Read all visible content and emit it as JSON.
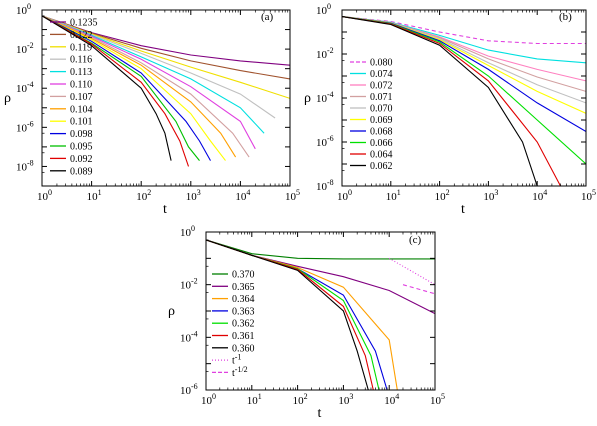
{
  "figure": {
    "panels": [
      {
        "id": "a",
        "label": "(a)",
        "xlabel": "t",
        "ylabel": "ρ",
        "xtick_exps": [
          "0",
          "1",
          "2",
          "3",
          "4",
          "5"
        ],
        "ytick_exps": [
          "0",
          "-2",
          "-4",
          "-6",
          "-8"
        ],
        "legend": [
          {
            "label": "0.1235",
            "color": "#800080"
          },
          {
            "label": "0.122",
            "color": "#a0522d"
          },
          {
            "label": "0.119",
            "color": "#f0e000"
          },
          {
            "label": "0.116",
            "color": "#c0c0c0"
          },
          {
            "label": "0.113",
            "color": "#00e0e0"
          },
          {
            "label": "0.110",
            "color": "#e040e0"
          },
          {
            "label": "0.107",
            "color": "#d2a0a0"
          },
          {
            "label": "0.104",
            "color": "#ffa000"
          },
          {
            "label": "0.101",
            "color": "#ffff00"
          },
          {
            "label": "0.098",
            "color": "#0000e0"
          },
          {
            "label": "0.095",
            "color": "#00c000"
          },
          {
            "label": "0.092",
            "color": "#e00000"
          },
          {
            "label": "0.089",
            "color": "#000000"
          }
        ]
      },
      {
        "id": "b",
        "label": "(b)",
        "xlabel": "t",
        "ylabel": "ρ",
        "xtick_exps": [
          "0",
          "1",
          "2",
          "3",
          "4",
          "5"
        ],
        "ytick_exps": [
          "0",
          "-2",
          "-4",
          "-6",
          "-8"
        ],
        "legend": [
          {
            "label": "0.080",
            "color": "#e040e0",
            "dash": true
          },
          {
            "label": "0.074",
            "color": "#00e0e0"
          },
          {
            "label": "0.072",
            "color": "#ff80c0"
          },
          {
            "label": "0.071",
            "color": "#d2a0a0"
          },
          {
            "label": "0.070",
            "color": "#c0c0c0"
          },
          {
            "label": "0.069",
            "color": "#ffff00"
          },
          {
            "label": "0.068",
            "color": "#0000e0"
          },
          {
            "label": "0.066",
            "color": "#00e000"
          },
          {
            "label": "0.064",
            "color": "#e00000"
          },
          {
            "label": "0.062",
            "color": "#000000"
          }
        ]
      },
      {
        "id": "c",
        "label": "(c)",
        "xlabel": "t",
        "ylabel": "ρ",
        "xtick_exps": [
          "0",
          "1",
          "2",
          "3",
          "4",
          "5"
        ],
        "ytick_exps": [
          "0",
          "-2",
          "-4",
          "-6"
        ],
        "legend": [
          {
            "label": "0.370",
            "color": "#008000"
          },
          {
            "label": "0.365",
            "color": "#800080"
          },
          {
            "label": "0.364",
            "color": "#ffa000"
          },
          {
            "label": "0.363",
            "color": "#0000e0"
          },
          {
            "label": "0.362",
            "color": "#00e000"
          },
          {
            "label": "0.361",
            "color": "#e00000"
          },
          {
            "label": "0.360",
            "color": "#000000"
          },
          {
            "label": "t",
            "sup": "-1",
            "color": "#e040e0",
            "dotted": true
          },
          {
            "label": "t",
            "sup": "-1/2",
            "color": "#e040e0",
            "dash": true
          }
        ]
      }
    ]
  },
  "chart_data": [
    {
      "type": "line",
      "panel": "(a)",
      "xlabel": "t",
      "ylabel": "ρ",
      "xscale": "log",
      "yscale": "log",
      "xlim": [
        1,
        100000
      ],
      "ylim": [
        1e-09,
        1
      ],
      "series": [
        {
          "name": "0.1235",
          "color": "#800080",
          "x": [
            1,
            10,
            100,
            1000,
            10000,
            100000
          ],
          "y": [
            0.5,
            0.07,
            0.015,
            0.005,
            0.0025,
            0.0015
          ]
        },
        {
          "name": "0.122",
          "color": "#a0522d",
          "x": [
            1,
            10,
            100,
            1000,
            10000,
            100000
          ],
          "y": [
            0.5,
            0.065,
            0.011,
            0.0025,
            0.0008,
            0.0003
          ]
        },
        {
          "name": "0.119",
          "color": "#f0e000",
          "x": [
            1,
            10,
            100,
            1000,
            10000,
            100000
          ],
          "y": [
            0.5,
            0.06,
            0.008,
            0.0012,
            0.0002,
            3e-05
          ]
        },
        {
          "name": "0.116",
          "color": "#c0c0c0",
          "x": [
            1,
            10,
            100,
            1000,
            10000,
            50000
          ],
          "y": [
            0.5,
            0.055,
            0.006,
            0.0006,
            5e-05,
            3e-06
          ]
        },
        {
          "name": "0.113",
          "color": "#00e0e0",
          "x": [
            1,
            10,
            100,
            1000,
            10000,
            30000
          ],
          "y": [
            0.5,
            0.05,
            0.004,
            0.0003,
            1e-05,
            5e-07
          ]
        },
        {
          "name": "0.110",
          "color": "#e040e0",
          "x": [
            1,
            10,
            100,
            1000,
            10000,
            20000
          ],
          "y": [
            0.5,
            0.045,
            0.003,
            0.00012,
            2e-06,
            8e-08
          ]
        },
        {
          "name": "0.107",
          "color": "#d2a0a0",
          "x": [
            1,
            10,
            100,
            1000,
            7000,
            15000
          ],
          "y": [
            0.5,
            0.04,
            0.002,
            5e-05,
            5e-07,
            3e-08
          ]
        },
        {
          "name": "0.104",
          "color": "#ffa000",
          "x": [
            1,
            10,
            100,
            1000,
            4000,
            8000
          ],
          "y": [
            0.5,
            0.035,
            0.0015,
            2e-05,
            5e-07,
            3e-08
          ]
        },
        {
          "name": "0.101",
          "color": "#ffff00",
          "x": [
            1,
            10,
            100,
            1000,
            2500,
            5000
          ],
          "y": [
            0.5,
            0.03,
            0.001,
            5e-06,
            2e-07,
            2e-08
          ]
        },
        {
          "name": "0.098",
          "color": "#0000e0",
          "x": [
            1,
            10,
            100,
            800,
            1500,
            2500
          ],
          "y": [
            0.5,
            0.025,
            0.0006,
            2e-06,
            2e-07,
            2e-08
          ]
        },
        {
          "name": "0.095",
          "color": "#00c000",
          "x": [
            1,
            10,
            100,
            500,
            900,
            1500
          ],
          "y": [
            0.5,
            0.02,
            0.0004,
            2e-06,
            1e-07,
            2e-08
          ]
        },
        {
          "name": "0.092",
          "color": "#e00000",
          "x": [
            1,
            10,
            100,
            300,
            600,
            900
          ],
          "y": [
            0.5,
            0.018,
            0.0002,
            5e-06,
            2e-07,
            1e-08
          ]
        },
        {
          "name": "0.089",
          "color": "#000000",
          "x": [
            1,
            10,
            100,
            200,
            300,
            400
          ],
          "y": [
            0.5,
            0.015,
            0.0001,
            5e-06,
            5e-07,
            2e-08
          ]
        }
      ]
    },
    {
      "type": "line",
      "panel": "(b)",
      "xlabel": "t",
      "ylabel": "ρ",
      "xscale": "log",
      "yscale": "log",
      "xlim": [
        1,
        100000
      ],
      "ylim": [
        1e-08,
        1
      ],
      "series": [
        {
          "name": "0.080",
          "color": "#e040e0",
          "x": [
            1,
            10,
            100,
            1000,
            10000,
            100000
          ],
          "y": [
            0.5,
            0.3,
            0.1,
            0.04,
            0.03,
            0.03
          ]
        },
        {
          "name": "0.074",
          "color": "#00e0e0",
          "x": [
            1,
            10,
            100,
            1000,
            10000,
            100000
          ],
          "y": [
            0.5,
            0.28,
            0.07,
            0.015,
            0.006,
            0.004
          ]
        },
        {
          "name": "0.072",
          "color": "#ff80c0",
          "x": [
            1,
            10,
            100,
            1000,
            10000,
            100000
          ],
          "y": [
            0.5,
            0.27,
            0.06,
            0.008,
            0.002,
            0.0006
          ]
        },
        {
          "name": "0.071",
          "color": "#d2a0a0",
          "x": [
            1,
            10,
            100,
            1000,
            10000,
            100000
          ],
          "y": [
            0.5,
            0.27,
            0.055,
            0.006,
            0.0009,
            0.0002
          ]
        },
        {
          "name": "0.070",
          "color": "#c0c0c0",
          "x": [
            1,
            10,
            100,
            1000,
            10000,
            100000
          ],
          "y": [
            0.5,
            0.26,
            0.05,
            0.004,
            0.0004,
            6e-05
          ]
        },
        {
          "name": "0.069",
          "color": "#ffff00",
          "x": [
            1,
            10,
            100,
            1000,
            10000,
            100000
          ],
          "y": [
            0.5,
            0.26,
            0.045,
            0.003,
            0.0002,
            2e-05
          ]
        },
        {
          "name": "0.068",
          "color": "#0000e0",
          "x": [
            1,
            10,
            100,
            1000,
            10000,
            100000
          ],
          "y": [
            0.5,
            0.25,
            0.04,
            0.002,
            6e-05,
            3e-06
          ]
        },
        {
          "name": "0.066",
          "color": "#00e000",
          "x": [
            1,
            10,
            100,
            1000,
            10000,
            100000
          ],
          "y": [
            0.5,
            0.24,
            0.035,
            0.001,
            1e-05,
            1e-07
          ]
        },
        {
          "name": "0.064",
          "color": "#e00000",
          "x": [
            1,
            10,
            100,
            1000,
            10000,
            30000
          ],
          "y": [
            0.5,
            0.23,
            0.03,
            0.0006,
            1e-06,
            1e-08
          ]
        },
        {
          "name": "0.062",
          "color": "#000000",
          "x": [
            1,
            10,
            100,
            1000,
            5000,
            10000
          ],
          "y": [
            0.5,
            0.22,
            0.025,
            0.0003,
            1e-06,
            1e-08
          ]
        }
      ]
    },
    {
      "type": "line",
      "panel": "(c)",
      "xlabel": "t",
      "ylabel": "ρ",
      "xscale": "log",
      "yscale": "log",
      "xlim": [
        1,
        100000
      ],
      "ylim": [
        1e-06,
        1
      ],
      "series": [
        {
          "name": "0.370",
          "color": "#008000",
          "x": [
            1,
            10,
            100,
            1000,
            10000,
            100000
          ],
          "y": [
            0.5,
            0.15,
            0.1,
            0.095,
            0.095,
            0.095
          ]
        },
        {
          "name": "0.365",
          "color": "#800080",
          "x": [
            1,
            10,
            100,
            1000,
            10000,
            100000
          ],
          "y": [
            0.5,
            0.13,
            0.05,
            0.02,
            0.006,
            0.0008
          ]
        },
        {
          "name": "0.364",
          "color": "#ffa000",
          "x": [
            1,
            10,
            100,
            1000,
            10000,
            15000
          ],
          "y": [
            0.5,
            0.13,
            0.045,
            0.008,
            8e-05,
            1e-06
          ]
        },
        {
          "name": "0.363",
          "color": "#0000e0",
          "x": [
            1,
            10,
            100,
            1000,
            5000,
            9000
          ],
          "y": [
            0.5,
            0.13,
            0.04,
            0.004,
            3e-05,
            1e-06
          ]
        },
        {
          "name": "0.362",
          "color": "#00e000",
          "x": [
            1,
            10,
            100,
            1000,
            4000,
            6000
          ],
          "y": [
            0.5,
            0.13,
            0.04,
            0.0025,
            2e-05,
            1e-06
          ]
        },
        {
          "name": "0.361",
          "color": "#e00000",
          "x": [
            1,
            10,
            100,
            1000,
            3000,
            4500
          ],
          "y": [
            0.5,
            0.13,
            0.038,
            0.0015,
            2e-05,
            1e-06
          ]
        },
        {
          "name": "0.360",
          "color": "#000000",
          "x": [
            1,
            10,
            100,
            1000,
            2000,
            3500
          ],
          "y": [
            0.5,
            0.13,
            0.035,
            0.001,
            3e-05,
            1e-06
          ]
        },
        {
          "name": "t^-1",
          "color": "#e040e0",
          "x": [
            10000,
            100000
          ],
          "y": [
            0.1,
            0.01
          ]
        },
        {
          "name": "t^-1/2",
          "color": "#e040e0",
          "x": [
            20000,
            100000
          ],
          "y": [
            0.01,
            0.0045
          ]
        }
      ]
    }
  ]
}
